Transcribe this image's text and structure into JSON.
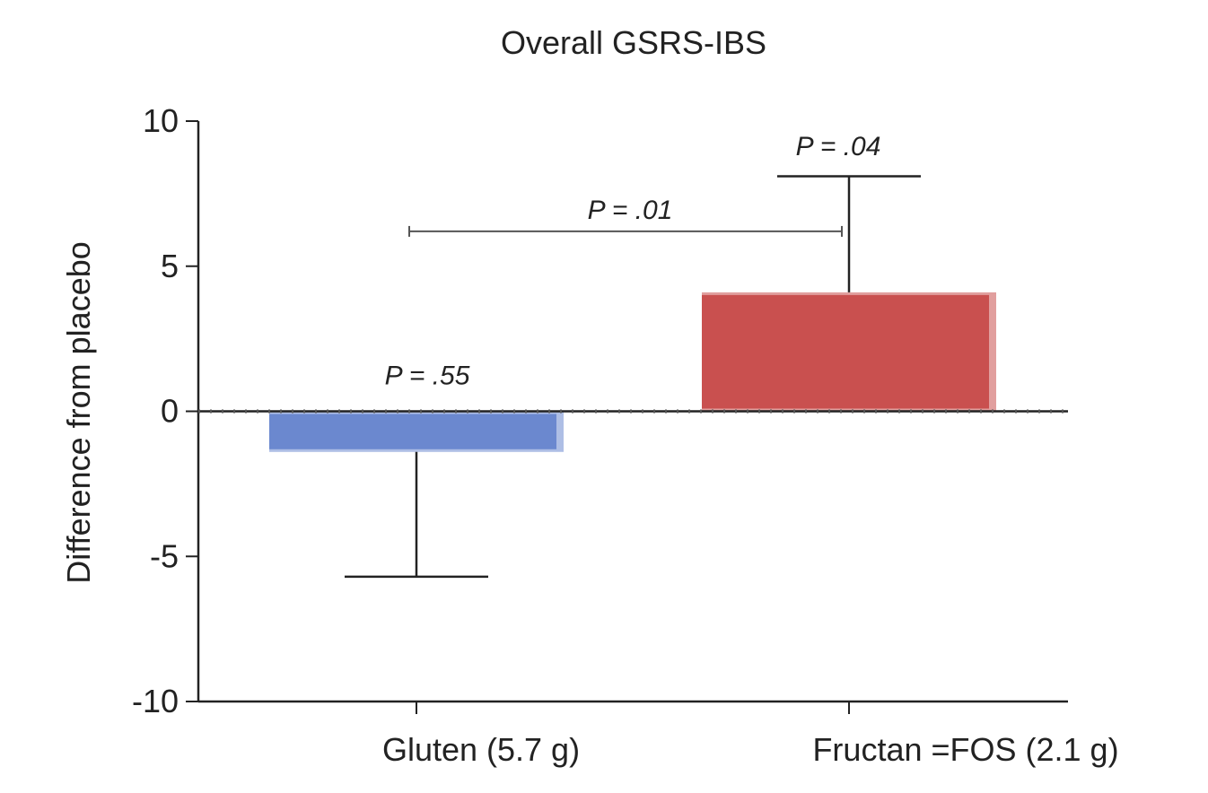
{
  "chart_data": {
    "type": "bar",
    "title": "Overall GSRS-IBS",
    "xlabel": "",
    "ylabel": "Difference from placebo",
    "ylim": [
      -10,
      10
    ],
    "yticks": [
      "10",
      "5",
      "0",
      "-5",
      "-10"
    ],
    "categories": [
      "Gluten (5.7  g)",
      "Fructan =FOS (2.1 g)"
    ],
    "series": [
      {
        "values": [
          -1.4,
          4.1
        ],
        "error_bar_ends": [
          -5.7,
          8.1
        ],
        "colors": [
          "#6b88cf",
          "#c9504f"
        ]
      }
    ],
    "annotations": [
      {
        "text": "P = .55",
        "category": 0,
        "y": 1.3
      },
      {
        "text": "P = .04",
        "category": 1,
        "y": 9.2
      },
      {
        "text": "P = .01",
        "between": [
          0,
          1
        ],
        "y": 7.0
      }
    ],
    "bracket": {
      "from": 0,
      "to": 1,
      "y": 6.2
    },
    "zero_line": "dotted"
  }
}
